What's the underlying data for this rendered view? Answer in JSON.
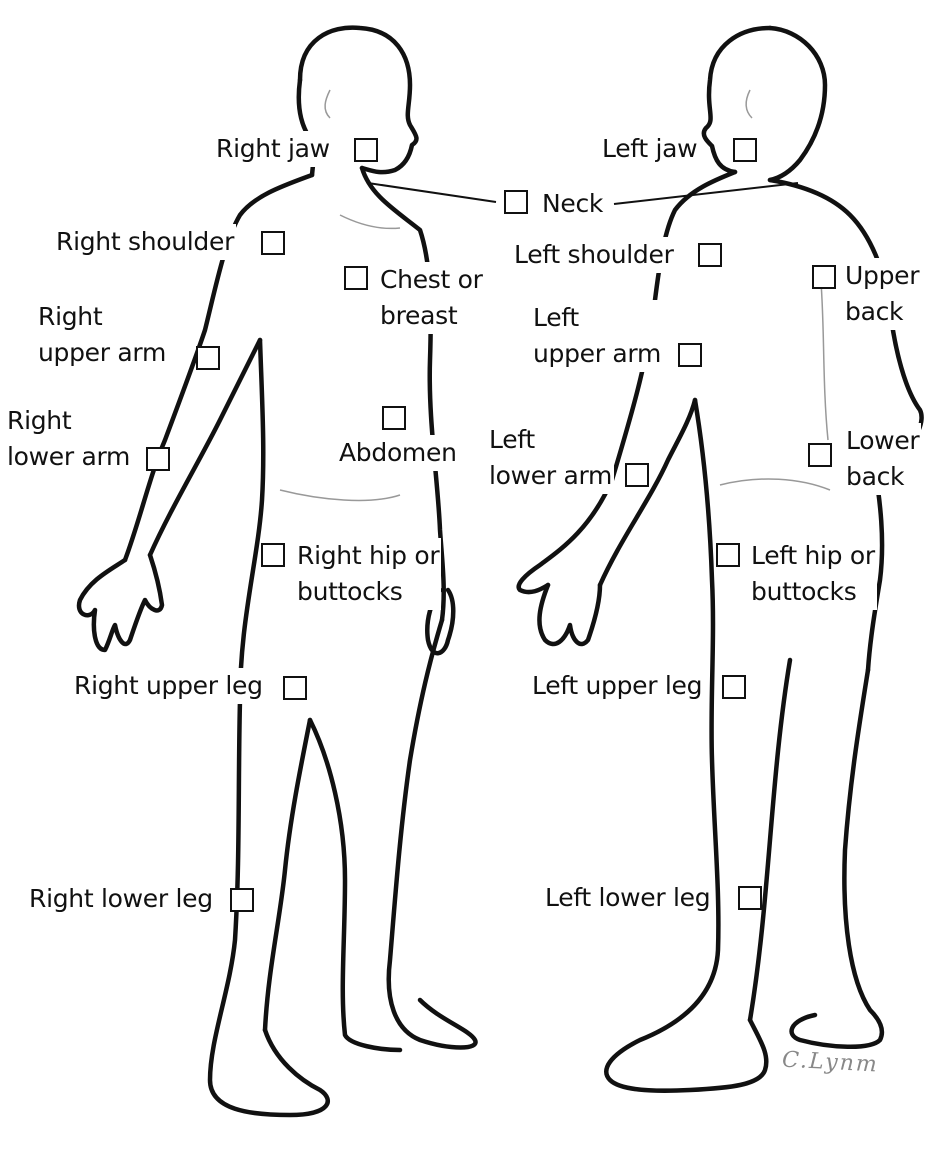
{
  "labels": {
    "right_jaw": "Right jaw",
    "neck": "Neck",
    "left_jaw": "Left jaw",
    "right_shoulder": "Right shoulder",
    "left_shoulder": "Left shoulder",
    "chest_1": "Chest or",
    "chest_2": "breast",
    "upper_back_1": "Upper",
    "upper_back_2": "back",
    "right_upper_arm_1": "Right",
    "right_upper_arm_2": "upper arm",
    "left_upper_arm_1": "Left",
    "left_upper_arm_2": "upper arm",
    "right_lower_arm_1": "Right",
    "right_lower_arm_2": "lower arm",
    "abdomen": "Abdomen",
    "left_lower_arm_1": "Left",
    "left_lower_arm_2": "lower arm",
    "lower_back_1": "Lower",
    "lower_back_2": "back",
    "right_hip_1": "Right hip or",
    "right_hip_2": "buttocks",
    "left_hip_1": "Left hip or",
    "left_hip_2": "buttocks",
    "right_upper_leg": "Right upper leg",
    "left_upper_leg": "Left upper leg",
    "right_lower_leg": "Right lower leg",
    "left_lower_leg": "Left lower leg"
  },
  "signature": "C.Lynm"
}
